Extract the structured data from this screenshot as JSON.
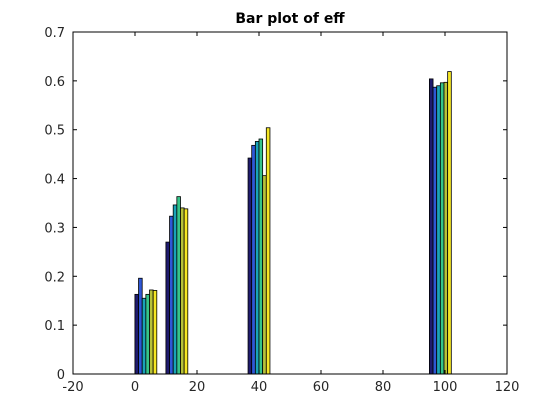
{
  "chart_data": {
    "type": "bar",
    "title": "Bar plot of eff",
    "xlabel": "",
    "ylabel": "",
    "xlim": [
      -20,
      120
    ],
    "ylim": [
      0,
      0.7
    ],
    "xticks": [
      -20,
      0,
      20,
      40,
      60,
      80,
      100,
      120
    ],
    "xtick_labels": [
      "-20",
      "0",
      "20",
      "40",
      "60",
      "80",
      "100",
      "120"
    ],
    "yticks": [
      0,
      0.1,
      0.2,
      0.3,
      0.4,
      0.5,
      0.6,
      0.7
    ],
    "ytick_labels": [
      "0",
      "0.1",
      "0.2",
      "0.3",
      "0.4",
      "0.5",
      "0.6",
      "0.7"
    ],
    "grid": false,
    "groups": [
      {
        "x": 3.5,
        "values": [
          0.163,
          0.196,
          0.155,
          0.163,
          0.172,
          0.171
        ]
      },
      {
        "x": 13.5,
        "values": [
          0.27,
          0.323,
          0.346,
          0.363,
          0.34,
          0.338
        ]
      },
      {
        "x": 40,
        "values": [
          0.442,
          0.468,
          0.476,
          0.481,
          0.406,
          0.504
        ]
      },
      {
        "x": 98.5,
        "values": [
          0.604,
          0.587,
          0.59,
          0.596,
          0.597,
          0.619
        ]
      }
    ],
    "bar_colors": [
      "#1f1b6e",
      "#2f57d6",
      "#1aa3b8",
      "#36c48a",
      "#b7c13a",
      "#f5e625"
    ]
  }
}
